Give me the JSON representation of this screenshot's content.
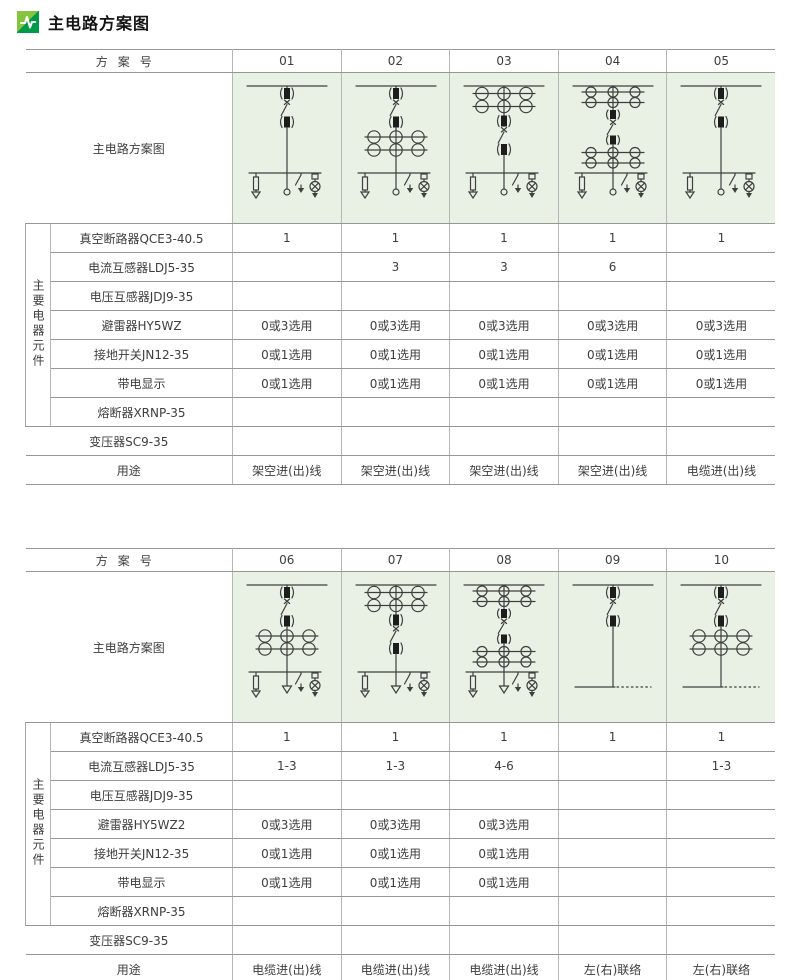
{
  "page": {
    "title": "主电路方案图"
  },
  "icons": {
    "header_icon": "pulse-icon"
  },
  "colors": {
    "icon_green_light": "#86c440",
    "icon_green_dark": "#009a49",
    "diagram_cell_bg": "#e9f1e5",
    "grid_line": "#9a9a9a",
    "text": "#3d3d3d"
  },
  "tables": [
    {
      "header_label": "方案号",
      "diagram_label": "主电路方案图",
      "group_label": "主要电器元件",
      "schemes": [
        {
          "no": "01",
          "diagram": {
            "parts": [
              "cb"
            ],
            "bottom": "branches",
            "drop": "circle"
          }
        },
        {
          "no": "02",
          "diagram": {
            "parts": [
              "cb",
              "ct"
            ],
            "bottom": "branches",
            "drop": "circle"
          }
        },
        {
          "no": "03",
          "diagram": {
            "parts": [
              "ct",
              "cb"
            ],
            "bottom": "branches",
            "drop": "circle"
          }
        },
        {
          "no": "04",
          "diagram": {
            "parts": [
              "ct",
              "cb",
              "ct"
            ],
            "bottom": "branches",
            "drop": "circle"
          }
        },
        {
          "no": "05",
          "diagram": {
            "parts": [
              "cb"
            ],
            "bottom": "branches",
            "drop": "circle"
          }
        }
      ],
      "rows": [
        {
          "label": "真空断路器QCE3-40.5",
          "group": true,
          "values": [
            "1",
            "1",
            "1",
            "1",
            "1"
          ]
        },
        {
          "label": "电流互感器LDJ5-35",
          "group": true,
          "values": [
            "",
            "3",
            "3",
            "6",
            ""
          ]
        },
        {
          "label": "电压互感器JDJ9-35",
          "group": true,
          "values": [
            "",
            "",
            "",
            "",
            ""
          ]
        },
        {
          "label": "避雷器HY5WZ",
          "group": true,
          "values": [
            "0或3选用",
            "0或3选用",
            "0或3选用",
            "0或3选用",
            "0或3选用"
          ]
        },
        {
          "label": "接地开关JN12-35",
          "group": true,
          "values": [
            "0或1选用",
            "0或1选用",
            "0或1选用",
            "0或1选用",
            "0或1选用"
          ]
        },
        {
          "label": "带电显示",
          "group": true,
          "values": [
            "0或1选用",
            "0或1选用",
            "0或1选用",
            "0或1选用",
            "0或1选用"
          ]
        },
        {
          "label": "熔断器XRNP-35",
          "group": true,
          "values": [
            "",
            "",
            "",
            "",
            ""
          ]
        },
        {
          "label": "变压器SC9-35",
          "group": false,
          "values": [
            "",
            "",
            "",
            "",
            ""
          ]
        },
        {
          "label": "用途",
          "group": false,
          "values": [
            "架空进(出)线",
            "架空进(出)线",
            "架空进(出)线",
            "架空进(出)线",
            "电缆进(出)线"
          ]
        }
      ]
    },
    {
      "header_label": "方案号",
      "diagram_label": "主电路方案图",
      "group_label": "主要电器元件",
      "schemes": [
        {
          "no": "06",
          "diagram": {
            "parts": [
              "cb",
              "ct"
            ],
            "bottom": "branches",
            "drop": "arrow"
          }
        },
        {
          "no": "07",
          "diagram": {
            "parts": [
              "ct",
              "cb"
            ],
            "bottom": "branches",
            "drop": "arrow"
          }
        },
        {
          "no": "08",
          "diagram": {
            "parts": [
              "ct",
              "cb",
              "ct"
            ],
            "bottom": "branches",
            "drop": "arrow"
          }
        },
        {
          "no": "09",
          "diagram": {
            "parts": [
              "cb"
            ],
            "bottom": "tie"
          }
        },
        {
          "no": "10",
          "diagram": {
            "parts": [
              "cb",
              "ct"
            ],
            "bottom": "tie"
          }
        }
      ],
      "rows": [
        {
          "label": "真空断路器QCE3-40.5",
          "group": true,
          "values": [
            "1",
            "1",
            "1",
            "1",
            "1"
          ]
        },
        {
          "label": "电流互感器LDJ5-35",
          "group": true,
          "values": [
            "1-3",
            "1-3",
            "4-6",
            "",
            "1-3"
          ]
        },
        {
          "label": "电压互感器JDJ9-35",
          "group": true,
          "values": [
            "",
            "",
            "",
            "",
            ""
          ]
        },
        {
          "label": "避雷器HY5WZ2",
          "group": true,
          "values": [
            "0或3选用",
            "0或3选用",
            "0或3选用",
            "",
            ""
          ]
        },
        {
          "label": "接地开关JN12-35",
          "group": true,
          "values": [
            "0或1选用",
            "0或1选用",
            "0或1选用",
            "",
            ""
          ]
        },
        {
          "label": "带电显示",
          "group": true,
          "values": [
            "0或1选用",
            "0或1选用",
            "0或1选用",
            "",
            ""
          ]
        },
        {
          "label": "熔断器XRNP-35",
          "group": true,
          "values": [
            "",
            "",
            "",
            "",
            ""
          ]
        },
        {
          "label": "变压器SC9-35",
          "group": false,
          "values": [
            "",
            "",
            "",
            "",
            ""
          ]
        },
        {
          "label": "用途",
          "group": false,
          "values": [
            "电缆进(出)线",
            "电缆进(出)线",
            "电缆进(出)线",
            "左(右)联络",
            "左(右)联络"
          ]
        }
      ]
    }
  ]
}
